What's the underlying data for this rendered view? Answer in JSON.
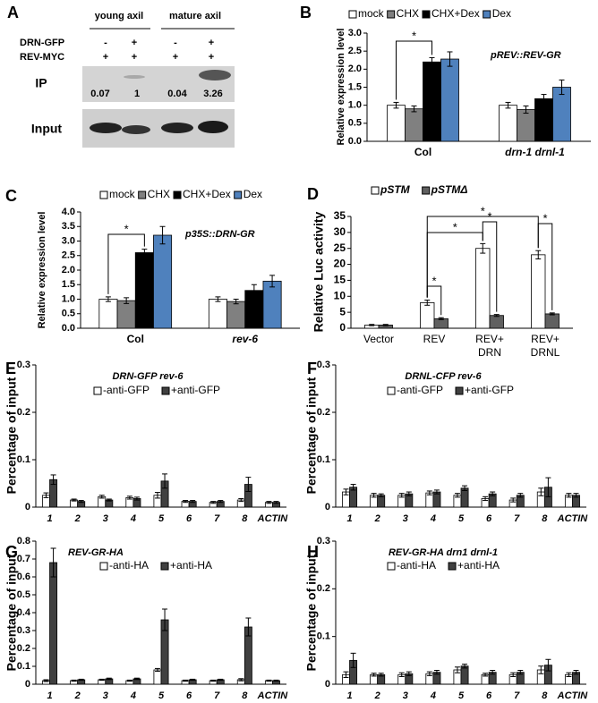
{
  "blot": {
    "panel": "A",
    "groups": [
      "young axil",
      "mature axil"
    ],
    "rows": [
      {
        "label": "DRN-GFP",
        "signs": [
          "-",
          "+",
          "-",
          "+"
        ]
      },
      {
        "label": "REV-MYC",
        "signs": [
          "+",
          "+",
          "+",
          "+"
        ]
      }
    ],
    "ip_label": "IP",
    "input_label": "Input",
    "ip_values": [
      0.07,
      1,
      0.04,
      3.26
    ]
  },
  "chart_data": [
    {
      "type": "bar",
      "panel": "B",
      "title": "pREV::REV-GR",
      "ylabel": "Relative expression level",
      "categories": [
        "Col",
        "drn-1 drnl-1"
      ],
      "series": [
        {
          "name": "mock",
          "color": "#ffffff",
          "values": [
            1.0,
            1.0
          ],
          "errors": [
            0.08,
            0.08
          ]
        },
        {
          "name": "CHX",
          "color": "#808080",
          "values": [
            0.9,
            0.88
          ],
          "errors": [
            0.08,
            0.1
          ]
        },
        {
          "name": "CHX+Dex",
          "color": "#000000",
          "values": [
            2.2,
            1.18
          ],
          "errors": [
            0.12,
            0.12
          ]
        },
        {
          "name": "Dex",
          "color": "#4f81bd",
          "values": [
            2.28,
            1.5
          ],
          "errors": [
            0.2,
            0.2
          ]
        }
      ],
      "ylim": [
        0,
        3
      ],
      "yticks": [
        {
          "value": 0,
          "label": "0.0"
        },
        0.5,
        {
          "value": 1,
          "label": "1.0"
        },
        1.5,
        {
          "value": 2,
          "label": "2.0"
        },
        2.5,
        {
          "value": 3,
          "label": "3.0"
        }
      ],
      "annotations": [
        "*"
      ]
    },
    {
      "type": "bar",
      "panel": "C",
      "title": "p35S::DRN-GR",
      "ylabel": "Relative expression level",
      "categories": [
        "Col",
        "rev-6"
      ],
      "series": [
        {
          "name": "mock",
          "color": "#ffffff",
          "values": [
            1.0,
            1.0
          ],
          "errors": [
            0.08,
            0.08
          ]
        },
        {
          "name": "CHX",
          "color": "#808080",
          "values": [
            0.95,
            0.92
          ],
          "errors": [
            0.1,
            0.08
          ]
        },
        {
          "name": "CHX+Dex",
          "color": "#000000",
          "values": [
            2.6,
            1.3
          ],
          "errors": [
            0.12,
            0.2
          ]
        },
        {
          "name": "Dex",
          "color": "#4f81bd",
          "values": [
            3.2,
            1.62
          ],
          "errors": [
            0.3,
            0.2
          ]
        }
      ],
      "ylim": [
        0,
        4
      ],
      "yticks": [
        {
          "value": 0,
          "label": "0.0"
        },
        0.5,
        {
          "value": 1,
          "label": "1.0"
        },
        1.5,
        {
          "value": 2,
          "label": "2.0"
        },
        2.5,
        {
          "value": 3,
          "label": "3.0"
        },
        3.5,
        {
          "value": 4,
          "label": "4.0"
        }
      ],
      "annotations": [
        "*"
      ]
    },
    {
      "type": "bar",
      "panel": "D",
      "ylabel": "Relative Luc activity",
      "categories": [
        [
          "Vector"
        ],
        [
          "REV"
        ],
        [
          "REV+",
          "DRN"
        ],
        [
          "REV+",
          "DRNL"
        ]
      ],
      "series": [
        {
          "name": "pSTM",
          "color": "#ffffff",
          "values": [
            1,
            8,
            25,
            23
          ],
          "errors": [
            0.2,
            0.8,
            1.5,
            1.3
          ]
        },
        {
          "name": "pSTMΔ",
          "color": "#606060",
          "values": [
            1,
            3,
            4,
            4.5
          ],
          "errors": [
            0.2,
            0.3,
            0.3,
            0.3
          ]
        }
      ],
      "ylim": [
        0,
        35
      ],
      "yticks": [
        0,
        5,
        10,
        15,
        20,
        25,
        30,
        35
      ],
      "annotations": [
        "*",
        "*",
        "*",
        "*",
        "*"
      ]
    },
    {
      "type": "bar",
      "panel": "E",
      "title": "DRN-GFP rev-6",
      "ylabel": "Percentage of input",
      "categories": [
        "1",
        "2",
        "3",
        "4",
        "5",
        "6",
        "7",
        "8",
        "ACTIN"
      ],
      "series": [
        {
          "name": "-anti-GFP",
          "color": "#ffffff",
          "values": [
            0.025,
            0.015,
            0.022,
            0.02,
            0.025,
            0.012,
            0.01,
            0.015,
            0.01
          ],
          "errors": [
            0.005,
            0.002,
            0.003,
            0.003,
            0.006,
            0.002,
            0.002,
            0.003,
            0.002
          ]
        },
        {
          "name": "+anti-GFP",
          "color": "#404040",
          "values": [
            0.058,
            0.012,
            0.015,
            0.018,
            0.055,
            0.012,
            0.012,
            0.048,
            0.01
          ],
          "errors": [
            0.01,
            0.002,
            0.002,
            0.003,
            0.015,
            0.002,
            0.002,
            0.015,
            0.002
          ]
        }
      ],
      "ylim": [
        0,
        0.3
      ],
      "yticks": [
        0,
        0.1,
        0.2,
        0.3
      ]
    },
    {
      "type": "bar",
      "panel": "F",
      "title": "DRNL-CFP rev-6",
      "ylabel": "Percentage of input",
      "categories": [
        "1",
        "2",
        "3",
        "4",
        "5",
        "6",
        "7",
        "8",
        "ACTIN"
      ],
      "series": [
        {
          "name": "-anti-GFP",
          "color": "#ffffff",
          "values": [
            0.032,
            0.025,
            0.025,
            0.03,
            0.025,
            0.018,
            0.015,
            0.032,
            0.025
          ],
          "errors": [
            0.006,
            0.004,
            0.004,
            0.004,
            0.004,
            0.004,
            0.004,
            0.008,
            0.004
          ]
        },
        {
          "name": "+anti-GFP",
          "color": "#404040",
          "values": [
            0.042,
            0.025,
            0.028,
            0.032,
            0.04,
            0.028,
            0.025,
            0.042,
            0.025
          ],
          "errors": [
            0.006,
            0.003,
            0.004,
            0.004,
            0.005,
            0.004,
            0.004,
            0.02,
            0.004
          ]
        }
      ],
      "ylim": [
        0,
        0.3
      ],
      "yticks": [
        0,
        0.1,
        0.2,
        0.3
      ]
    },
    {
      "type": "bar",
      "panel": "G",
      "title": "REV-GR-HA",
      "ylabel": "Percentage of input",
      "categories": [
        "1",
        "2",
        "3",
        "4",
        "5",
        "6",
        "7",
        "8",
        "ACTIN"
      ],
      "series": [
        {
          "name": "-anti-HA",
          "color": "#ffffff",
          "values": [
            0.02,
            0.02,
            0.025,
            0.02,
            0.08,
            0.02,
            0.02,
            0.025,
            0.02
          ],
          "errors": [
            0.005,
            0.003,
            0.003,
            0.003,
            0.008,
            0.003,
            0.003,
            0.006,
            0.003
          ]
        },
        {
          "name": "+anti-HA",
          "color": "#404040",
          "values": [
            0.68,
            0.025,
            0.03,
            0.03,
            0.36,
            0.025,
            0.025,
            0.32,
            0.02
          ],
          "errors": [
            0.08,
            0.003,
            0.004,
            0.004,
            0.06,
            0.003,
            0.003,
            0.05,
            0.003
          ]
        }
      ],
      "ylim": [
        0,
        0.8
      ],
      "yticks": [
        0,
        0.1,
        0.2,
        0.3,
        0.4,
        0.5,
        0.6,
        0.7,
        0.8
      ]
    },
    {
      "type": "bar",
      "panel": "H",
      "title": "REV-GR-HA drn1 drnl-1",
      "ylabel": "Percentage of input",
      "categories": [
        "1",
        "2",
        "3",
        "4",
        "5",
        "6",
        "7",
        "8",
        "ACTIN"
      ],
      "series": [
        {
          "name": "-anti-HA",
          "color": "#ffffff",
          "values": [
            0.02,
            0.02,
            0.02,
            0.022,
            0.03,
            0.02,
            0.02,
            0.03,
            0.02
          ],
          "errors": [
            0.006,
            0.003,
            0.004,
            0.004,
            0.006,
            0.003,
            0.004,
            0.008,
            0.004
          ]
        },
        {
          "name": "+anti-HA",
          "color": "#404040",
          "values": [
            0.05,
            0.02,
            0.022,
            0.025,
            0.038,
            0.025,
            0.025,
            0.04,
            0.025
          ],
          "errors": [
            0.015,
            0.003,
            0.004,
            0.004,
            0.004,
            0.004,
            0.004,
            0.012,
            0.004
          ]
        }
      ],
      "ylim": [
        0,
        0.3
      ],
      "yticks": [
        0,
        0.1,
        0.2,
        0.3
      ]
    }
  ]
}
